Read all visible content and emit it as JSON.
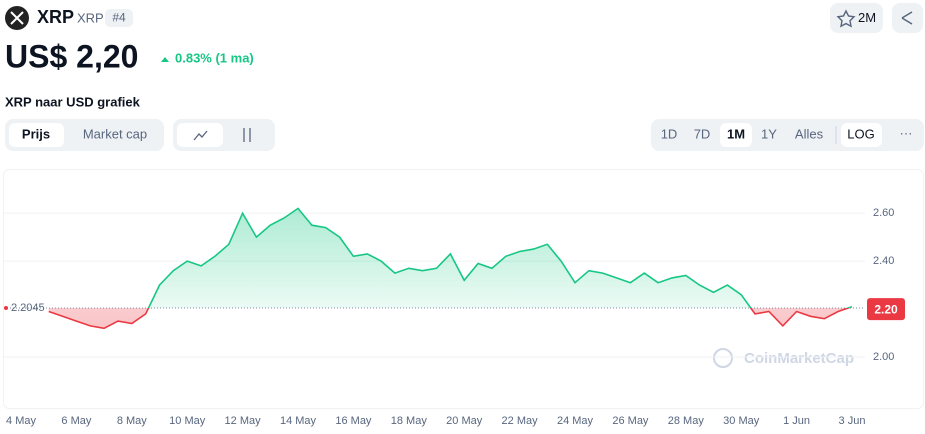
{
  "header": {
    "name": "XRP",
    "symbol": "XRP",
    "rank": "#4",
    "watchers": "2M",
    "price": "US$ 2,20",
    "change": "0.83% (1 ma)",
    "chart_heading": "XRP naar USD grafiek"
  },
  "tabs": [
    "Prijs",
    "Market cap"
  ],
  "ranges": [
    "1D",
    "7D",
    "1M",
    "1Y",
    "Alles"
  ],
  "log": "LOG",
  "more": "···",
  "watermark": "CoinMarketCap",
  "chart_data": {
    "type": "line",
    "categories": [
      "4 May",
      null,
      null,
      null,
      "6 May",
      null,
      null,
      null,
      "8 May",
      null,
      null,
      null,
      "10 May",
      null,
      null,
      null,
      "12 May",
      null,
      null,
      null,
      "14 May",
      null,
      null,
      null,
      "16 May",
      null,
      null,
      null,
      "18 May",
      null,
      null,
      null,
      "20 May",
      null,
      null,
      null,
      "22 May",
      null,
      null,
      null,
      "24 May",
      null,
      null,
      null,
      "26 May",
      null,
      null,
      null,
      "28 May",
      null,
      null,
      null,
      "30 May",
      null,
      null,
      null,
      "1 Jun",
      null,
      null,
      null,
      "3 Jun"
    ],
    "values": [
      null,
      null,
      2.19,
      2.17,
      2.15,
      2.13,
      2.12,
      2.15,
      2.14,
      2.18,
      2.3,
      2.36,
      2.4,
      2.38,
      2.42,
      2.47,
      2.6,
      2.5,
      2.55,
      2.58,
      2.62,
      2.55,
      2.54,
      2.5,
      2.42,
      2.43,
      2.4,
      2.35,
      2.37,
      2.36,
      2.37,
      2.43,
      2.32,
      2.39,
      2.37,
      2.42,
      2.44,
      2.45,
      2.47,
      2.4,
      2.31,
      2.36,
      2.35,
      2.33,
      2.31,
      2.35,
      2.31,
      2.33,
      2.34,
      2.3,
      2.27,
      2.3,
      2.26,
      2.18,
      2.19,
      2.13,
      2.19,
      2.17,
      2.16,
      2.19,
      2.21
    ],
    "color_up": "#16c784",
    "color_down": "#ea3943",
    "baseline": 2.2045,
    "current": {
      "value": 2.2,
      "label": "2.20"
    },
    "ylim": [
      1.8,
      2.78
    ],
    "yticks": [
      {
        "value": 2.0,
        "label": "2.00"
      },
      {
        "value": 2.4,
        "label": "2.40"
      },
      {
        "value": 2.6,
        "label": "2.60"
      }
    ],
    "grid": true
  }
}
